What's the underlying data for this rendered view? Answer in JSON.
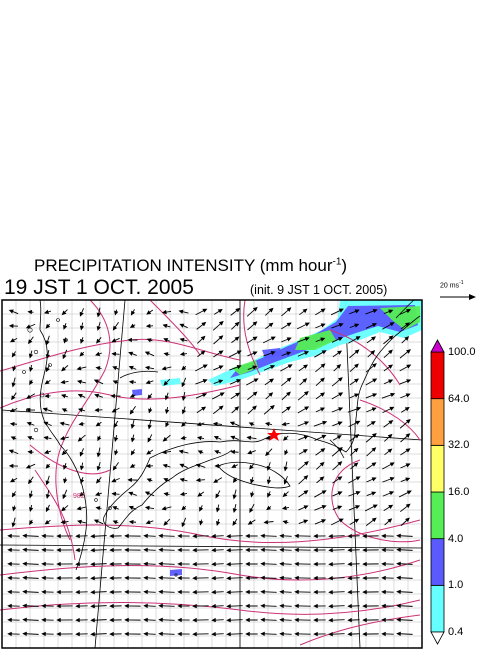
{
  "title": {
    "main": "PRECIPITATION INTENSITY (mm hour",
    "exp": "-1",
    "close": ")"
  },
  "valid_time": "19 JST 1 OCT. 2005",
  "init_time": "(init. 9 JST 1 OCT. 2005)",
  "reference_vector": {
    "label": "20 ms",
    "exp": "-1"
  },
  "colorbar": {
    "levels": [
      "0.4",
      "1.0",
      "4.0",
      "16.0",
      "32.0",
      "64.0",
      "100.0"
    ],
    "colors": [
      "#ffffff",
      "#66ffff",
      "#5a5aff",
      "#55ee55",
      "#ffff66",
      "#ffa040",
      "#ee0000",
      "#cc00cc"
    ]
  },
  "contour_labels": [
    "982"
  ],
  "colors": {
    "coastline": "#000000",
    "isobar": "#cc3377",
    "grid": "#bdbdbd",
    "marker": "#ff0000"
  }
}
